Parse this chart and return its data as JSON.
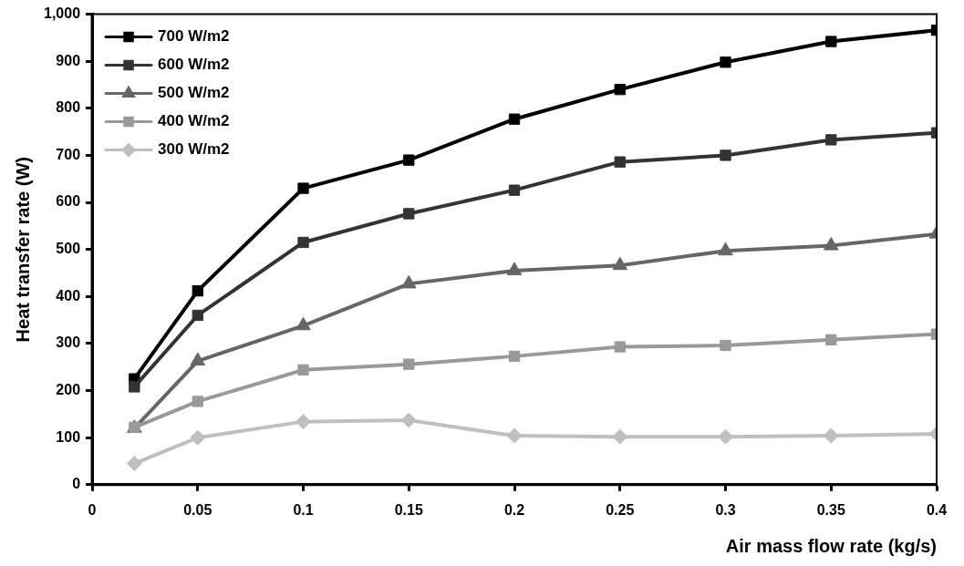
{
  "chart_data": {
    "type": "line",
    "xlabel": "Air mass flow rate (kg/s)",
    "ylabel": "Heat transfer rate (W)",
    "x": [
      0.02,
      0.05,
      0.1,
      0.15,
      0.2,
      0.25,
      0.3,
      0.35,
      0.4
    ],
    "series": [
      {
        "name": "700 W/m2",
        "color": "#000000",
        "marker": "square",
        "values": [
          225,
          412,
          630,
          690,
          777,
          840,
          898,
          942,
          966
        ]
      },
      {
        "name": "600 W/m2",
        "color": "#333333",
        "marker": "square",
        "values": [
          208,
          360,
          515,
          576,
          626,
          686,
          700,
          733,
          748
        ]
      },
      {
        "name": "500 W/m2",
        "color": "#666666",
        "marker": "triangle",
        "values": [
          120,
          263,
          338,
          427,
          455,
          466,
          497,
          508,
          533
        ]
      },
      {
        "name": "400 W/m2",
        "color": "#999999",
        "marker": "square",
        "values": [
          122,
          177,
          244,
          256,
          273,
          293,
          296,
          308,
          320
        ]
      },
      {
        "name": "300 W/m2",
        "color": "#bfbfbf",
        "marker": "diamond",
        "values": [
          45,
          100,
          134,
          137,
          104,
          102,
          102,
          104,
          108
        ]
      }
    ],
    "xlim": [
      0,
      0.4
    ],
    "xticks": [
      0,
      0.05,
      0.1,
      0.15,
      0.2,
      0.25,
      0.3,
      0.35,
      0.4
    ],
    "ylim": [
      0,
      1000
    ],
    "yticks": [
      0,
      100,
      200,
      300,
      400,
      500,
      600,
      700,
      800,
      900,
      {
        "value": 1000,
        "label": "1,000"
      }
    ],
    "grid": false,
    "legend": "top left",
    "line_style": "solid"
  }
}
